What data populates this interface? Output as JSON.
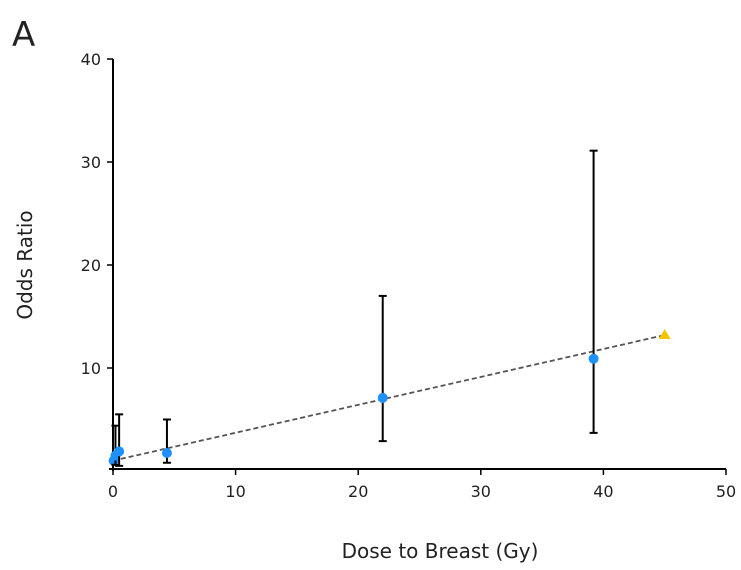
{
  "chart_data": {
    "type": "scatter",
    "panel_label": "A",
    "x_label": "Dose to Breast (Gy)",
    "y_label": "Odds Ratio",
    "xlim": [
      0,
      50
    ],
    "xticks": [
      0,
      10,
      20,
      30,
      40,
      50
    ],
    "ylim": [
      0,
      40
    ],
    "yticks": [
      10,
      20,
      30,
      40
    ],
    "series": [
      {
        "color": "#1e90ff",
        "x": [
          0.05,
          0.2,
          0.5,
          4.4,
          22,
          39.2
        ],
        "values": [
          1.0,
          1.5,
          1.9,
          1.75,
          7.1,
          10.9
        ],
        "lower": [
          null,
          0.6,
          0.5,
          0.8,
          2.9,
          3.7
        ],
        "upper": [
          null,
          4.4,
          5.5,
          5.0,
          17.0,
          31.1
        ]
      }
    ],
    "trend_line": {
      "x": [
        0,
        45
      ],
      "values": [
        1.0,
        13.2
      ],
      "color": "#555555",
      "marker_color": "#f5c400"
    }
  }
}
